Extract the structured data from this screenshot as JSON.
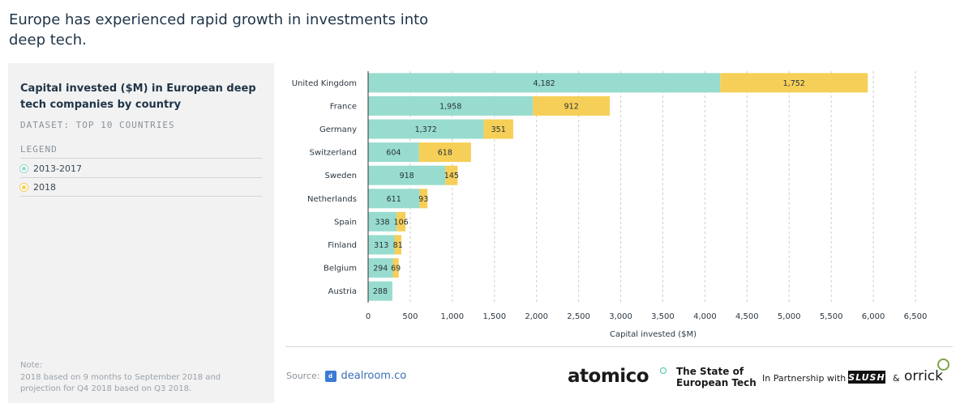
{
  "headline": "Europe has experienced rapid growth in investments into deep tech.",
  "panel": {
    "title": "Capital invested ($M) in European deep tech companies by country",
    "dataset": "DATASET: TOP 10 COUNTRIES",
    "legend_heading": "LEGEND",
    "note_label": "Note:",
    "note_text": "2018 based on 9 months to September 2018 and projection for Q4 2018 based on Q3 2018."
  },
  "colors": {
    "series_2013_2017": "#98dccf",
    "series_2018": "#f5cf57",
    "grid": "#cccccc"
  },
  "chart_data": {
    "type": "bar",
    "orientation": "horizontal",
    "stacked": true,
    "categories": [
      "United Kingdom",
      "France",
      "Germany",
      "Switzerland",
      "Sweden",
      "Netherlands",
      "Spain",
      "Finland",
      "Belgium",
      "Austria"
    ],
    "series": [
      {
        "name": "2013-2017",
        "values": [
          4182,
          1958,
          1372,
          604,
          918,
          611,
          338,
          313,
          294,
          288
        ]
      },
      {
        "name": "2018",
        "values": [
          1752,
          912,
          351,
          618,
          145,
          93,
          106,
          81,
          69,
          null
        ]
      }
    ],
    "value_labels": {
      "2013-2017": [
        "4,182",
        "1,958",
        "1,372",
        "604",
        "918",
        "611",
        "338",
        "313",
        "294",
        "288"
      ],
      "2018": [
        "1,752",
        "912",
        "351",
        "618",
        "145",
        "93",
        "106",
        "81",
        "69",
        ""
      ]
    },
    "xlabel": "Capital invested ($M)",
    "xlim": [
      0,
      6500
    ],
    "xticks": [
      0,
      500,
      1000,
      1500,
      2000,
      2500,
      3000,
      3500,
      4000,
      4500,
      5000,
      5500,
      6000,
      6500
    ],
    "xtick_labels": [
      "0",
      "500",
      "1,000",
      "1,500",
      "2,000",
      "2,500",
      "3,000",
      "3,500",
      "4,000",
      "4,500",
      "5,000",
      "5,500",
      "6,000",
      "6,500"
    ],
    "grid": true
  },
  "footer": {
    "source_label": "Source:",
    "source_icon": "dealroom-logo-icon",
    "source_name": "dealroom.co",
    "brand": "atomico",
    "report_line1": "The State of",
    "report_line2": "European Tech",
    "partnership": "In Partnership with",
    "partner1": "SLUSH",
    "amp": "&",
    "partner2": "orrick"
  }
}
